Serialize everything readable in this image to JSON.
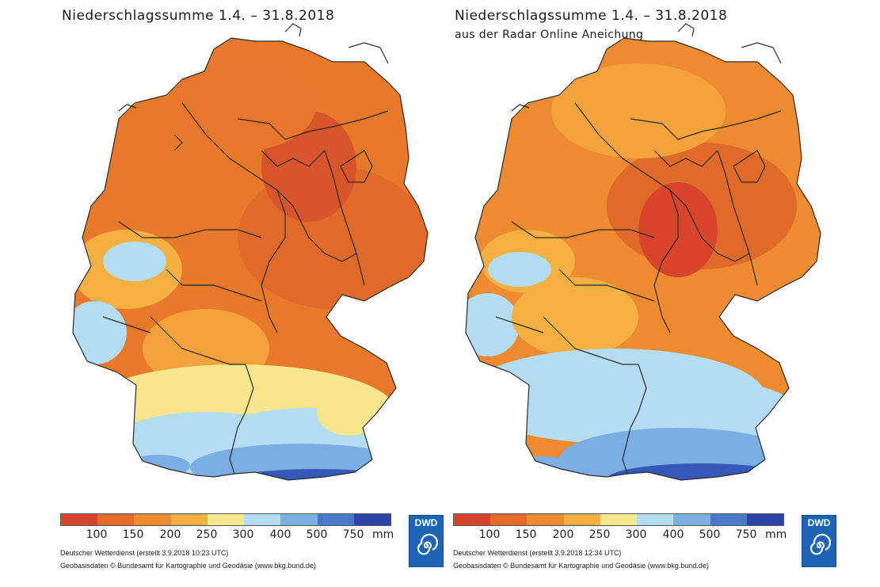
{
  "maps": [
    {
      "title": "Niederschlagssumme 1.4. – 31.8.2018",
      "subtitle": "",
      "credit_line1": "Deutscher Wetterdienst (erstellt 3.9.2018 10:23 UTC)",
      "credit_line2": "Geobasisdaten © Bundesamt für Kartographie und Geodäsie (www.bkg.bund.de)"
    },
    {
      "title": "Niederschlagssumme 1.4. – 31.8.2018",
      "subtitle": "aus der Radar Online Aneichung",
      "credit_line1": "Deutscher Wetterdienst (erstellt 3.9.2018 12:34 UTC)",
      "credit_line2": "Geobasisdaten © Bundesamt für Kartographie und Geodäsie (www.bkg.bund.de)"
    }
  ],
  "legend": {
    "labels": [
      "100",
      "150",
      "200",
      "250",
      "300",
      "400",
      "500",
      "750"
    ],
    "unit": "mm",
    "colors": [
      "#d8442c",
      "#e8682a",
      "#ee8a30",
      "#f4b040",
      "#f8e68c",
      "#b4dcf2",
      "#7aaee4",
      "#4a78cc",
      "#2c44a8"
    ]
  },
  "logo": {
    "text": "DWD",
    "icon": "dwd-spiral-icon"
  },
  "palette": {
    "dry_red": "#d8442c",
    "orange": "#e8782a",
    "light_orange": "#f4a23c",
    "yellow": "#f8e68c",
    "light_blue": "#b4dcf2",
    "mid_blue": "#7aaee4",
    "dark_blue": "#3658b8",
    "border": "#2a2a2a"
  }
}
